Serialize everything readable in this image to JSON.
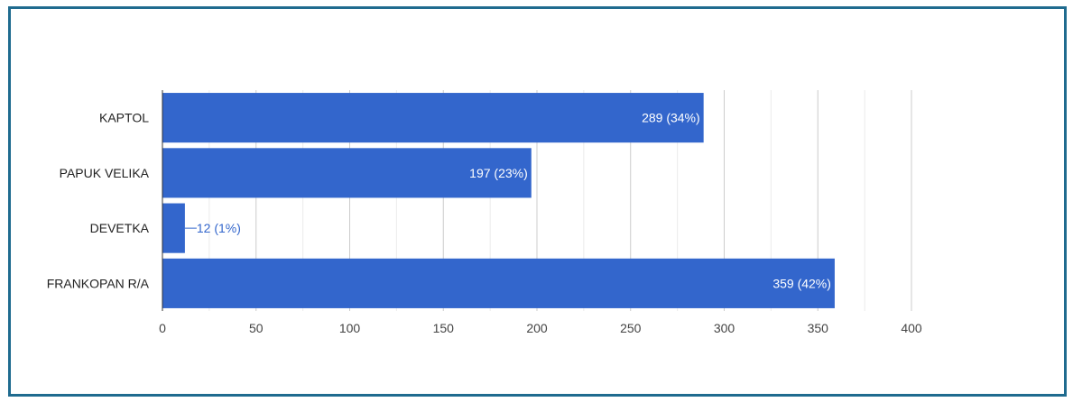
{
  "colors": {
    "bar": "#3366cc",
    "grid_major": "#cccccc",
    "grid_minor": "#ebebeb",
    "axis": "#333333",
    "frame": "#1f6b8f"
  },
  "chart_data": {
    "type": "bar",
    "orientation": "horizontal",
    "title": "",
    "xlabel": "",
    "ylabel": "",
    "categories": [
      "KAPTOL",
      "PAPUK VELIKA",
      "DEVETKA",
      "FRANKOPAN R/A"
    ],
    "values": [
      289,
      197,
      12,
      359
    ],
    "data_labels": [
      "289 (34%)",
      "197 (23%)",
      "12 (1%)",
      "359 (42%)"
    ],
    "xlim": [
      0,
      400
    ],
    "xticks": [
      0,
      50,
      100,
      150,
      200,
      250,
      300,
      350,
      400
    ],
    "xtick_labels": [
      "0",
      "50",
      "100",
      "150",
      "200",
      "250",
      "300",
      "350",
      "400"
    ],
    "minor_step": 25,
    "grid": true,
    "legend": "none"
  }
}
